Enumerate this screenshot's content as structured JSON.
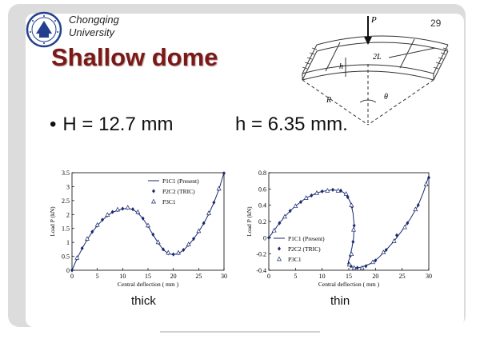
{
  "header": {
    "university_line1": "Chongqing",
    "university_line2": "University",
    "page_number": "29"
  },
  "title": "Shallow dome",
  "params": {
    "bullet": "•",
    "H_text": "H = 12.7 mm",
    "h_text": "h = 6.35 mm."
  },
  "diagram": {
    "labels": [
      "P",
      "h",
      "2L",
      "R",
      "θ"
    ]
  },
  "captions": {
    "thick": "thick",
    "thin": "thin"
  },
  "colors": {
    "title": "#7a1a18",
    "series": "#1a2a6e"
  },
  "chart_data": [
    {
      "type": "line",
      "xlabel": "Central deflection ( mm )",
      "ylabel": "Load P (kN)",
      "xlim": [
        0,
        30
      ],
      "ylim": [
        0,
        3.5
      ],
      "xticks": [
        0,
        5,
        10,
        15,
        20,
        25,
        30
      ],
      "yticks": [
        0,
        0.5,
        1,
        1.5,
        2,
        2.5,
        3,
        3.5
      ],
      "legend_position": "top-right",
      "series": [
        {
          "name": "P1C1 (Present)",
          "style": "line",
          "x": [
            0,
            1,
            2,
            3,
            4,
            5,
            6,
            7,
            8,
            9,
            10,
            11,
            12,
            13,
            14,
            15,
            16,
            17,
            18,
            19,
            20,
            21,
            22,
            23,
            24,
            25,
            26,
            27,
            28,
            29,
            30
          ],
          "y": [
            0,
            0.42,
            0.78,
            1.1,
            1.37,
            1.6,
            1.8,
            1.96,
            2.08,
            2.15,
            2.2,
            2.22,
            2.18,
            2.06,
            1.85,
            1.58,
            1.27,
            0.98,
            0.74,
            0.6,
            0.56,
            0.6,
            0.72,
            0.9,
            1.12,
            1.38,
            1.68,
            2.02,
            2.42,
            2.9,
            3.5
          ]
        },
        {
          "name": "P2C2 (TRIC)",
          "style": "diamond",
          "x": [
            0,
            1,
            2,
            3,
            4,
            5,
            6,
            7,
            8,
            9,
            10,
            11,
            12,
            13,
            14,
            15,
            16,
            17,
            18,
            19,
            20,
            21,
            22,
            23,
            24,
            25,
            26,
            27,
            28,
            29,
            30
          ],
          "y": [
            0,
            0.43,
            0.79,
            1.11,
            1.38,
            1.61,
            1.81,
            1.97,
            2.09,
            2.16,
            2.21,
            2.23,
            2.19,
            2.07,
            1.86,
            1.59,
            1.28,
            0.99,
            0.75,
            0.61,
            0.57,
            0.61,
            0.73,
            0.91,
            1.13,
            1.39,
            1.69,
            2.03,
            2.43,
            2.91,
            3.48
          ]
        },
        {
          "name": "P3C1",
          "style": "triangle",
          "x": [
            1,
            3,
            5,
            7,
            9,
            11,
            13,
            15,
            17,
            19,
            21,
            23,
            25,
            27,
            29
          ],
          "y": [
            0.45,
            1.13,
            1.63,
            1.99,
            2.18,
            2.25,
            2.09,
            1.61,
            1.01,
            0.63,
            0.63,
            0.93,
            1.41,
            2.05,
            2.93
          ]
        }
      ]
    },
    {
      "type": "line",
      "xlabel": "Central deflection ( mm )",
      "ylabel": "Load P (kN)",
      "xlim": [
        0,
        30
      ],
      "ylim": [
        -0.4,
        0.8
      ],
      "xticks": [
        0,
        5,
        10,
        15,
        20,
        25,
        30
      ],
      "yticks": [
        -0.4,
        -0.2,
        0,
        0.2,
        0.4,
        0.6,
        0.8
      ],
      "legend_position": "bottom-left",
      "series": [
        {
          "name": "P1C1 (Present)",
          "style": "line",
          "x": [
            0,
            1,
            2,
            3,
            4,
            5,
            6,
            7,
            8,
            9,
            10,
            11,
            12,
            13,
            14,
            14.8,
            15.4,
            15.8,
            16,
            15.9,
            15.6,
            15.2,
            14.9,
            15,
            15.6,
            16.5,
            17.5,
            19,
            20.5,
            22,
            23.5,
            25,
            26.5,
            28,
            29,
            30
          ],
          "y": [
            0,
            0.09,
            0.18,
            0.26,
            0.33,
            0.39,
            0.44,
            0.49,
            0.52,
            0.55,
            0.57,
            0.58,
            0.59,
            0.58,
            0.56,
            0.5,
            0.42,
            0.3,
            0.15,
            0,
            -0.12,
            -0.24,
            -0.3,
            -0.34,
            -0.36,
            -0.37,
            -0.36,
            -0.32,
            -0.25,
            -0.15,
            -0.04,
            0.09,
            0.23,
            0.4,
            0.56,
            0.76
          ]
        },
        {
          "name": "P2C2 (TRIC)",
          "style": "diamond",
          "x": [
            0,
            2,
            4,
            6,
            8,
            10,
            12,
            13.5,
            14.8,
            15.6,
            16,
            15.8,
            15.3,
            15,
            15.4,
            16.6,
            18.2,
            20,
            22,
            24,
            26,
            28,
            30
          ],
          "y": [
            0,
            0.18,
            0.33,
            0.44,
            0.52,
            0.57,
            0.59,
            0.58,
            0.5,
            0.38,
            0.15,
            -0.05,
            -0.22,
            -0.32,
            -0.35,
            -0.37,
            -0.35,
            -0.28,
            -0.15,
            0.03,
            0.18,
            0.4,
            0.74
          ]
        },
        {
          "name": "P3C1",
          "style": "triangle",
          "x": [
            1,
            3,
            5,
            7,
            9,
            11,
            13,
            14.5,
            15.5,
            15.9,
            15.5,
            15.1,
            16,
            17.5,
            19.5,
            21.5,
            23.5,
            25.5,
            27.5,
            29.5
          ],
          "y": [
            0.09,
            0.26,
            0.39,
            0.49,
            0.55,
            0.58,
            0.58,
            0.54,
            0.4,
            0.1,
            -0.2,
            -0.33,
            -0.37,
            -0.37,
            -0.3,
            -0.18,
            -0.04,
            0.13,
            0.35,
            0.66
          ]
        }
      ]
    }
  ]
}
